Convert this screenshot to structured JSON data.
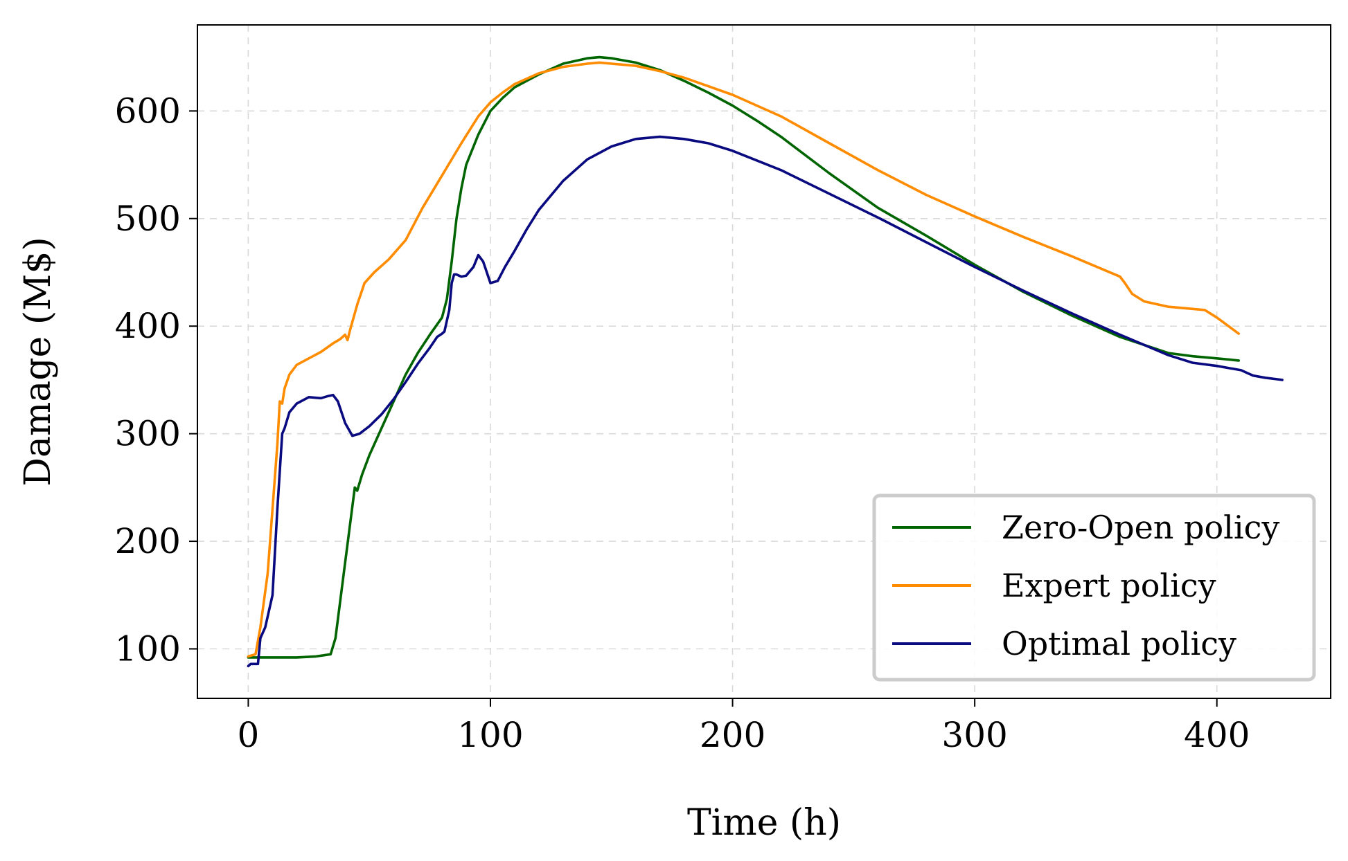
{
  "chart_data": {
    "type": "line",
    "title": "",
    "xlabel": "Time (h)",
    "ylabel": "Damage (M$)",
    "xlim": [
      -21,
      447
    ],
    "ylim": [
      54,
      680
    ],
    "xticks": [
      0,
      100,
      200,
      300,
      400
    ],
    "yticks": [
      100,
      200,
      300,
      400,
      500,
      600
    ],
    "grid": true,
    "legend_position": "lower-right",
    "series": [
      {
        "name": "Zero-Open policy",
        "color": "#006400",
        "x": [
          0,
          5,
          20,
          28,
          34,
          36,
          40,
          44,
          45,
          47,
          50,
          52,
          56,
          60,
          65,
          70,
          75,
          80,
          82,
          84,
          86,
          88,
          90,
          95,
          100,
          105,
          110,
          120,
          130,
          140,
          145,
          150,
          160,
          170,
          180,
          190,
          200,
          210,
          220,
          240,
          260,
          280,
          300,
          320,
          340,
          360,
          380,
          390,
          400,
          409
        ],
        "values": [
          92,
          92,
          92,
          93,
          95,
          110,
          180,
          250,
          247,
          262,
          280,
          290,
          310,
          330,
          355,
          375,
          392,
          408,
          425,
          460,
          500,
          528,
          550,
          578,
          600,
          612,
          622,
          634,
          644,
          649,
          650,
          649,
          645,
          638,
          628,
          617,
          605,
          591,
          576,
          542,
          510,
          484,
          457,
          432,
          410,
          390,
          375,
          372,
          370,
          368
        ]
      },
      {
        "name": "Expert policy",
        "color": "#ff8c00",
        "x": [
          0,
          3,
          5,
          8,
          10,
          12,
          13,
          14,
          15,
          17,
          20,
          25,
          30,
          35,
          38,
          40,
          41,
          42,
          45,
          48,
          52,
          58,
          65,
          72,
          80,
          88,
          95,
          100,
          105,
          110,
          120,
          130,
          140,
          145,
          150,
          160,
          170,
          180,
          190,
          200,
          220,
          240,
          260,
          280,
          300,
          320,
          340,
          360,
          362,
          365,
          370,
          380,
          390,
          395,
          400,
          409
        ],
        "values": [
          93,
          95,
          120,
          170,
          230,
          290,
          330,
          328,
          342,
          355,
          364,
          370,
          376,
          384,
          388,
          392,
          387,
          396,
          420,
          440,
          450,
          462,
          480,
          510,
          540,
          570,
          595,
          608,
          617,
          625,
          635,
          641,
          644,
          645,
          644,
          642,
          637,
          631,
          623,
          615,
          595,
          570,
          545,
          522,
          502,
          483,
          465,
          446,
          440,
          430,
          423,
          418,
          416,
          415,
          408,
          393
        ]
      },
      {
        "name": "Optimal policy",
        "color": "#0a0a80",
        "x": [
          0,
          1,
          2,
          4,
          5,
          7,
          10,
          12,
          14,
          15,
          17,
          20,
          25,
          30,
          33,
          35,
          37,
          40,
          43,
          46,
          50,
          55,
          60,
          65,
          70,
          75,
          78,
          80,
          81,
          82,
          83,
          84,
          85,
          86,
          88,
          90,
          93,
          95,
          97,
          100,
          103,
          106,
          110,
          115,
          120,
          130,
          140,
          150,
          160,
          170,
          180,
          190,
          200,
          220,
          240,
          260,
          280,
          300,
          320,
          340,
          360,
          380,
          390,
          400,
          410,
          413,
          415,
          420,
          427
        ],
        "values": [
          84,
          86,
          86,
          86,
          110,
          120,
          150,
          230,
          300,
          305,
          320,
          328,
          334,
          333,
          335,
          336,
          330,
          310,
          298,
          300,
          307,
          318,
          332,
          348,
          365,
          380,
          390,
          393,
          395,
          405,
          415,
          440,
          448,
          448,
          446,
          447,
          455,
          466,
          460,
          440,
          442,
          455,
          470,
          490,
          508,
          535,
          555,
          567,
          574,
          576,
          574,
          570,
          563,
          545,
          523,
          501,
          478,
          455,
          433,
          412,
          392,
          373,
          366,
          363,
          359,
          356,
          354,
          352,
          350
        ]
      }
    ]
  }
}
